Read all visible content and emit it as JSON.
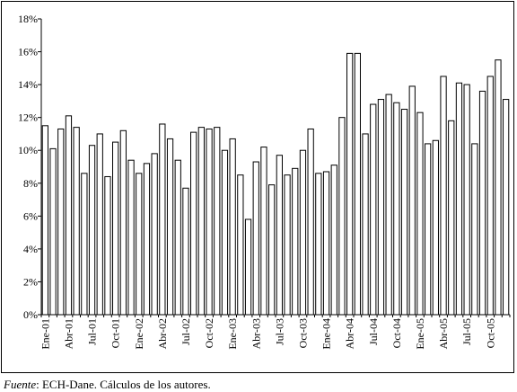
{
  "chart_data": {
    "type": "bar",
    "categories": [
      "Ene-01",
      "Feb-01",
      "Mar-01",
      "Abr-01",
      "May-01",
      "Jun-01",
      "Jul-01",
      "Ago-01",
      "Sep-01",
      "Oct-01",
      "Nov-01",
      "Dic-01",
      "Ene-02",
      "Feb-02",
      "Mar-02",
      "Abr-02",
      "May-02",
      "Jun-02",
      "Jul-02",
      "Ago-02",
      "Sep-02",
      "Oct-02",
      "Nov-02",
      "Dic-02",
      "Ene-03",
      "Feb-03",
      "Mar-03",
      "Abr-03",
      "May-03",
      "Jun-03",
      "Jul-03",
      "Ago-03",
      "Sep-03",
      "Oct-03",
      "Nov-03",
      "Dic-03",
      "Ene-04",
      "Feb-04",
      "Mar-04",
      "Abr-04",
      "May-04",
      "Jun-04",
      "Jul-04",
      "Ago-04",
      "Sep-04",
      "Oct-04",
      "Nov-04",
      "Dic-04",
      "Ene-05",
      "Feb-05",
      "Mar-05",
      "Abr-05",
      "May-05",
      "Jun-05",
      "Jul-05",
      "Ago-05",
      "Sep-05",
      "Oct-05",
      "Nov-05",
      "Dic-05"
    ],
    "x_tick_labels": [
      "Ene-01",
      "Abr-01",
      "Jul-01",
      "Oct-01",
      "Ene-02",
      "Abr-02",
      "Jul-02",
      "Oct-02",
      "Ene-03",
      "Abr-03",
      "Jul-03",
      "Oct-03",
      "Ene-04",
      "Abr-04",
      "Jul-04",
      "Oct-04",
      "Ene-05",
      "Abr-05",
      "Jul-05",
      "Oct-05"
    ],
    "values": [
      11.5,
      10.1,
      11.3,
      12.1,
      11.4,
      8.6,
      10.3,
      11.0,
      8.4,
      10.5,
      11.2,
      9.4,
      8.6,
      9.2,
      9.8,
      11.6,
      10.7,
      9.4,
      7.7,
      11.1,
      11.4,
      11.3,
      11.4,
      10.0,
      10.7,
      8.5,
      5.8,
      9.3,
      10.2,
      7.9,
      9.7,
      8.5,
      8.9,
      10.0,
      11.3,
      8.6,
      8.7,
      9.1,
      12.0,
      15.9,
      15.9,
      11.0,
      12.8,
      13.1,
      13.4,
      12.9,
      12.5,
      13.9,
      12.3,
      10.4,
      10.6,
      14.5,
      11.8,
      14.1,
      14.0,
      10.4,
      13.6,
      14.5,
      15.5,
      13.1
    ],
    "y_tick_labels": [
      "0%",
      "2%",
      "4%",
      "6%",
      "8%",
      "10%",
      "12%",
      "14%",
      "16%",
      "18%"
    ],
    "ylim": [
      0,
      18
    ],
    "bar_fill": "#ffffff",
    "bar_stroke": "#000000",
    "grid": false,
    "title": "",
    "xlabel": "",
    "ylabel": ""
  },
  "source": {
    "label": "Fuente",
    "text": ": ECH-Dane. Cálculos de los autores."
  }
}
